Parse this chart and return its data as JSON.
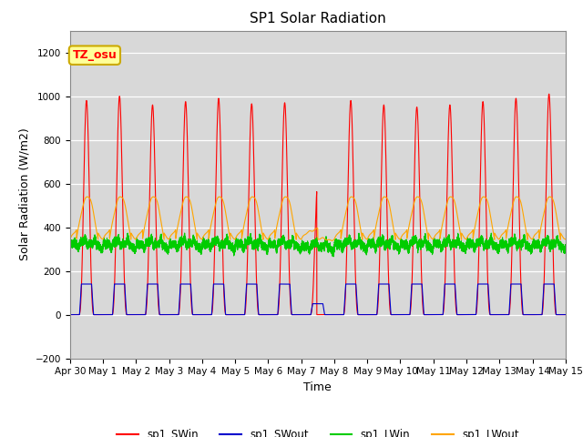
{
  "title": "SP1 Solar Radiation",
  "xlabel": "Time",
  "ylabel": "Solar Radiation (W/m2)",
  "xlim_days": [
    0,
    15
  ],
  "ylim": [
    -200,
    1300
  ],
  "yticks": [
    -200,
    0,
    200,
    400,
    600,
    800,
    1000,
    1200
  ],
  "xtick_labels": [
    "Apr 30",
    "May 1",
    "May 2",
    "May 3",
    "May 4",
    "May 5",
    "May 6",
    "May 7",
    "May 8",
    "May 9",
    "May 10",
    "May 11",
    "May 12",
    "May 13",
    "May 14",
    "May 15"
  ],
  "colors": {
    "sp1_SWin": "#ff0000",
    "sp1_SWout": "#0000cc",
    "sp1_LWin": "#00cc00",
    "sp1_LWout": "#ffa500"
  },
  "background_color": "#ffffff",
  "plot_bg_color": "#d8d8d8",
  "grid_color": "#ffffff",
  "annotation_text": "TZ_osu",
  "annotation_bg": "#ffff99",
  "annotation_border": "#ccaa00",
  "legend_labels": [
    "sp1_SWin",
    "sp1_SWout",
    "sp1_LWin",
    "sp1_LWout"
  ],
  "sw_day_start": 0.27,
  "sw_day_end": 0.73,
  "sw_peak": 980,
  "swout_peak": 140,
  "lwin_base": 310,
  "lwout_base": 345,
  "lwout_amplitude": 195
}
